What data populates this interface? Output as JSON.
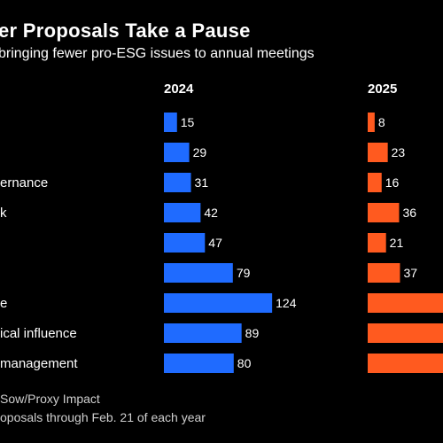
{
  "header": {
    "title": "er Proposals Take a Pause",
    "subtitle": "bringing fewer pro-ESG issues to annual meetings"
  },
  "footer": {
    "source": "Sow/Proxy Impact",
    "note": "oposals through Feb. 21 of each year"
  },
  "colors": {
    "series_2024": "#1f6bff",
    "series_2025": "#ff5a1f",
    "background": "#000000"
  },
  "chart_data": {
    "type": "bar",
    "orientation": "horizontal",
    "categories": [
      "",
      "",
      "ernance",
      "k",
      "",
      "",
      "e",
      "ical influence",
      "management"
    ],
    "series": [
      {
        "name": "2024",
        "values": [
          15,
          29,
          31,
          42,
          47,
          79,
          124,
          89,
          80
        ],
        "labels": [
          "15",
          "29",
          "31",
          "42",
          "47",
          "79",
          "124",
          "89",
          "80"
        ]
      },
      {
        "name": "2025",
        "values": [
          8,
          23,
          16,
          36,
          21,
          37,
          null,
          null,
          null
        ],
        "labels": [
          "8",
          "23",
          "16",
          "36",
          "21",
          "37",
          "",
          "",
          ""
        ]
      }
    ],
    "grid": false,
    "legend": "column headers above bars"
  }
}
